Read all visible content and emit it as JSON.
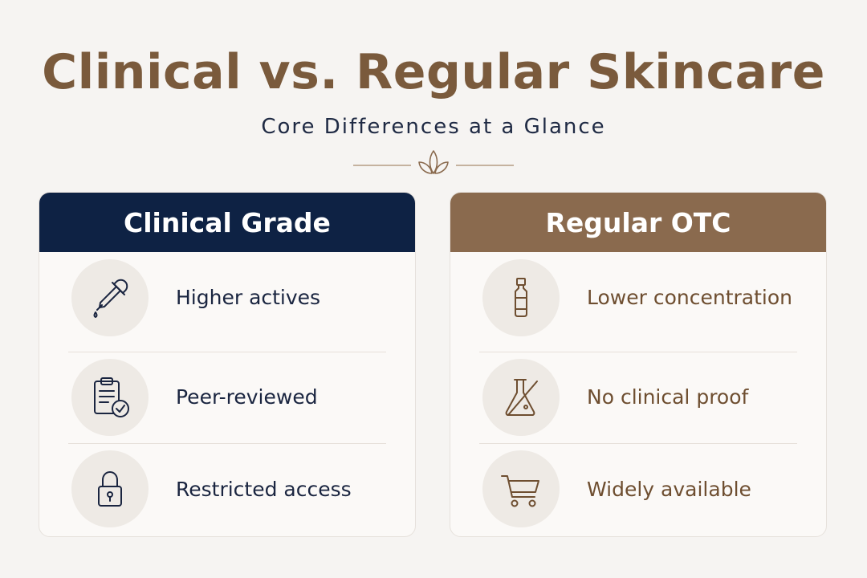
{
  "title": "Clinical vs. Regular Skincare",
  "subtitle": "Core Differences at a Glance",
  "divider_icon": "leaf-sprout-icon",
  "colors": {
    "background": "#f6f4f2",
    "title": "#7a5a3c",
    "navy": "#0e2244",
    "brown": "#8a6a4e"
  },
  "clinical": {
    "header": "Clinical Grade",
    "items": [
      {
        "label": "Higher actives",
        "icon": "dropper-icon"
      },
      {
        "label": "Peer-reviewed",
        "icon": "clipboard-check-icon"
      },
      {
        "label": "Restricted access",
        "icon": "padlock-icon"
      }
    ]
  },
  "regular": {
    "header": "Regular OTC",
    "items": [
      {
        "label": "Lower concentration",
        "icon": "bottle-icon"
      },
      {
        "label": "No clinical proof",
        "icon": "flask-crossed-icon"
      },
      {
        "label": "Widely available",
        "icon": "shopping-cart-icon"
      }
    ]
  }
}
